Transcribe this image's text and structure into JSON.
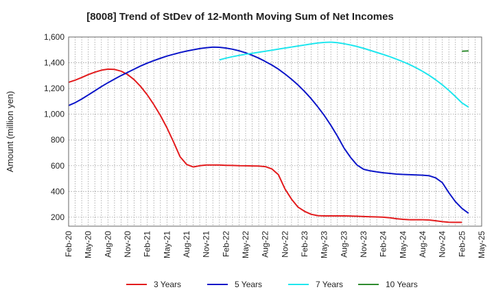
{
  "chart_data": {
    "type": "line",
    "title": "[8008]  Trend of StDev of 12-Month Moving Sum of Net Incomes",
    "xlabel": "",
    "ylabel": "Amount (million yen)",
    "ylim": [
      130,
      1600
    ],
    "yticks": [
      200,
      400,
      600,
      800,
      "1,000",
      "1,200",
      "1,400",
      "1,600"
    ],
    "ytick_values": [
      200,
      400,
      600,
      800,
      1000,
      1200,
      1400,
      1600
    ],
    "xticks": [
      "Feb-20",
      "May-20",
      "Aug-20",
      "Nov-20",
      "Feb-21",
      "May-21",
      "Aug-21",
      "Nov-21",
      "Feb-22",
      "May-22",
      "Aug-22",
      "Nov-22",
      "Feb-23",
      "May-23",
      "Aug-23",
      "Nov-23",
      "Feb-24",
      "May-24",
      "Aug-24",
      "Nov-24",
      "Feb-25",
      "May-25"
    ],
    "grid": true,
    "legend_position": "bottom",
    "series": [
      {
        "name": "3 Years",
        "color": "#e31a1c",
        "points": [
          [
            "Feb-20",
            1248
          ],
          [
            "Mar-20",
            1265
          ],
          [
            "Apr-20",
            1285
          ],
          [
            "May-20",
            1308
          ],
          [
            "Jun-20",
            1327
          ],
          [
            "Jul-20",
            1342
          ],
          [
            "Aug-20",
            1350
          ],
          [
            "Sep-20",
            1348
          ],
          [
            "Oct-20",
            1335
          ],
          [
            "Nov-20",
            1308
          ],
          [
            "Dec-20",
            1268
          ],
          [
            "Jan-21",
            1215
          ],
          [
            "Feb-21",
            1150
          ],
          [
            "Mar-21",
            1075
          ],
          [
            "Apr-21",
            990
          ],
          [
            "May-21",
            895
          ],
          [
            "Jun-21",
            785
          ],
          [
            "Jul-21",
            670
          ],
          [
            "Aug-21",
            610
          ],
          [
            "Sep-21",
            590
          ],
          [
            "Oct-21",
            600
          ],
          [
            "Nov-21",
            605
          ],
          [
            "Dec-21",
            605
          ],
          [
            "Jan-22",
            605
          ],
          [
            "Feb-22",
            603
          ],
          [
            "Mar-22",
            602
          ],
          [
            "Apr-22",
            600
          ],
          [
            "May-22",
            599
          ],
          [
            "Jun-22",
            598
          ],
          [
            "Jul-22",
            597
          ],
          [
            "Aug-22",
            593
          ],
          [
            "Sep-22",
            575
          ],
          [
            "Oct-22",
            530
          ],
          [
            "Nov-22",
            420
          ],
          [
            "Dec-22",
            340
          ],
          [
            "Jan-23",
            278
          ],
          [
            "Feb-23",
            245
          ],
          [
            "Mar-23",
            222
          ],
          [
            "Apr-23",
            212
          ],
          [
            "May-23",
            210
          ],
          [
            "Jun-23",
            210
          ],
          [
            "Jul-23",
            210
          ],
          [
            "Aug-23",
            210
          ],
          [
            "Sep-23",
            209
          ],
          [
            "Oct-23",
            207
          ],
          [
            "Nov-23",
            205
          ],
          [
            "Dec-23",
            203
          ],
          [
            "Jan-24",
            202
          ],
          [
            "Feb-24",
            200
          ],
          [
            "Mar-24",
            195
          ],
          [
            "Apr-24",
            188
          ],
          [
            "May-24",
            183
          ],
          [
            "Jun-24",
            180
          ],
          [
            "Jul-24",
            180
          ],
          [
            "Aug-24",
            180
          ],
          [
            "Sep-24",
            178
          ],
          [
            "Oct-24",
            172
          ],
          [
            "Nov-24",
            165
          ],
          [
            "Dec-24",
            161
          ],
          [
            "Jan-25",
            160
          ],
          [
            "Feb-25",
            160
          ]
        ]
      },
      {
        "name": "5 Years",
        "color": "#0a14c8",
        "points": [
          [
            "Feb-20",
            1068
          ],
          [
            "Mar-20",
            1090
          ],
          [
            "Apr-20",
            1118
          ],
          [
            "May-20",
            1150
          ],
          [
            "Jun-20",
            1182
          ],
          [
            "Jul-20",
            1215
          ],
          [
            "Aug-20",
            1245
          ],
          [
            "Sep-20",
            1273
          ],
          [
            "Oct-20",
            1300
          ],
          [
            "Nov-20",
            1325
          ],
          [
            "Dec-20",
            1350
          ],
          [
            "Jan-21",
            1375
          ],
          [
            "Feb-21",
            1397
          ],
          [
            "Mar-21",
            1417
          ],
          [
            "Apr-21",
            1435
          ],
          [
            "May-21",
            1452
          ],
          [
            "Jun-21",
            1466
          ],
          [
            "Jul-21",
            1479
          ],
          [
            "Aug-21",
            1491
          ],
          [
            "Sep-21",
            1501
          ],
          [
            "Oct-21",
            1510
          ],
          [
            "Nov-21",
            1517
          ],
          [
            "Dec-21",
            1521
          ],
          [
            "Jan-22",
            1520
          ],
          [
            "Feb-22",
            1514
          ],
          [
            "Mar-22",
            1505
          ],
          [
            "Apr-22",
            1493
          ],
          [
            "May-22",
            1477
          ],
          [
            "Jun-22",
            1458
          ],
          [
            "Jul-22",
            1436
          ],
          [
            "Aug-22",
            1410
          ],
          [
            "Sep-22",
            1382
          ],
          [
            "Oct-22",
            1350
          ],
          [
            "Nov-22",
            1313
          ],
          [
            "Dec-22",
            1272
          ],
          [
            "Jan-23",
            1227
          ],
          [
            "Feb-23",
            1176
          ],
          [
            "Mar-23",
            1120
          ],
          [
            "Apr-23",
            1058
          ],
          [
            "May-23",
            990
          ],
          [
            "Jun-23",
            914
          ],
          [
            "Jul-23",
            830
          ],
          [
            "Aug-23",
            738
          ],
          [
            "Sep-23",
            665
          ],
          [
            "Oct-23",
            605
          ],
          [
            "Nov-23",
            572
          ],
          [
            "Dec-23",
            560
          ],
          [
            "Jan-24",
            552
          ],
          [
            "Feb-24",
            545
          ],
          [
            "Mar-24",
            540
          ],
          [
            "Apr-24",
            535
          ],
          [
            "May-24",
            532
          ],
          [
            "Jun-24",
            530
          ],
          [
            "Jul-24",
            528
          ],
          [
            "Aug-24",
            526
          ],
          [
            "Sep-24",
            522
          ],
          [
            "Oct-24",
            505
          ],
          [
            "Nov-24",
            468
          ],
          [
            "Dec-24",
            390
          ],
          [
            "Jan-25",
            320
          ],
          [
            "Feb-25",
            268
          ],
          [
            "Mar-25",
            230
          ]
        ]
      },
      {
        "name": "7 Years",
        "color": "#1ee6ee",
        "points": [
          [
            "Jan-22",
            1422
          ],
          [
            "Feb-22",
            1436
          ],
          [
            "Mar-22",
            1447
          ],
          [
            "Apr-22",
            1457
          ],
          [
            "May-22",
            1466
          ],
          [
            "Jun-22",
            1474
          ],
          [
            "Jul-22",
            1482
          ],
          [
            "Aug-22",
            1490
          ],
          [
            "Sep-22",
            1498
          ],
          [
            "Oct-22",
            1506
          ],
          [
            "Nov-22",
            1514
          ],
          [
            "Dec-22",
            1522
          ],
          [
            "Jan-23",
            1530
          ],
          [
            "Feb-23",
            1538
          ],
          [
            "Mar-23",
            1546
          ],
          [
            "Apr-23",
            1553
          ],
          [
            "May-23",
            1558
          ],
          [
            "Jun-23",
            1560
          ],
          [
            "Jul-23",
            1556
          ],
          [
            "Aug-23",
            1548
          ],
          [
            "Sep-23",
            1538
          ],
          [
            "Oct-23",
            1526
          ],
          [
            "Nov-23",
            1512
          ],
          [
            "Dec-23",
            1496
          ],
          [
            "Jan-24",
            1480
          ],
          [
            "Feb-24",
            1464
          ],
          [
            "Mar-24",
            1447
          ],
          [
            "Apr-24",
            1428
          ],
          [
            "May-24",
            1408
          ],
          [
            "Jun-24",
            1386
          ],
          [
            "Jul-24",
            1361
          ],
          [
            "Aug-24",
            1333
          ],
          [
            "Sep-24",
            1302
          ],
          [
            "Oct-24",
            1267
          ],
          [
            "Nov-24",
            1228
          ],
          [
            "Dec-24",
            1185
          ],
          [
            "Jan-25",
            1137
          ],
          [
            "Feb-25",
            1088
          ],
          [
            "Mar-25",
            1055
          ]
        ]
      },
      {
        "name": "10 Years",
        "color": "#2e8b2e",
        "points": [
          [
            "Feb-25",
            1490
          ],
          [
            "Mar-25",
            1492
          ]
        ]
      }
    ]
  }
}
